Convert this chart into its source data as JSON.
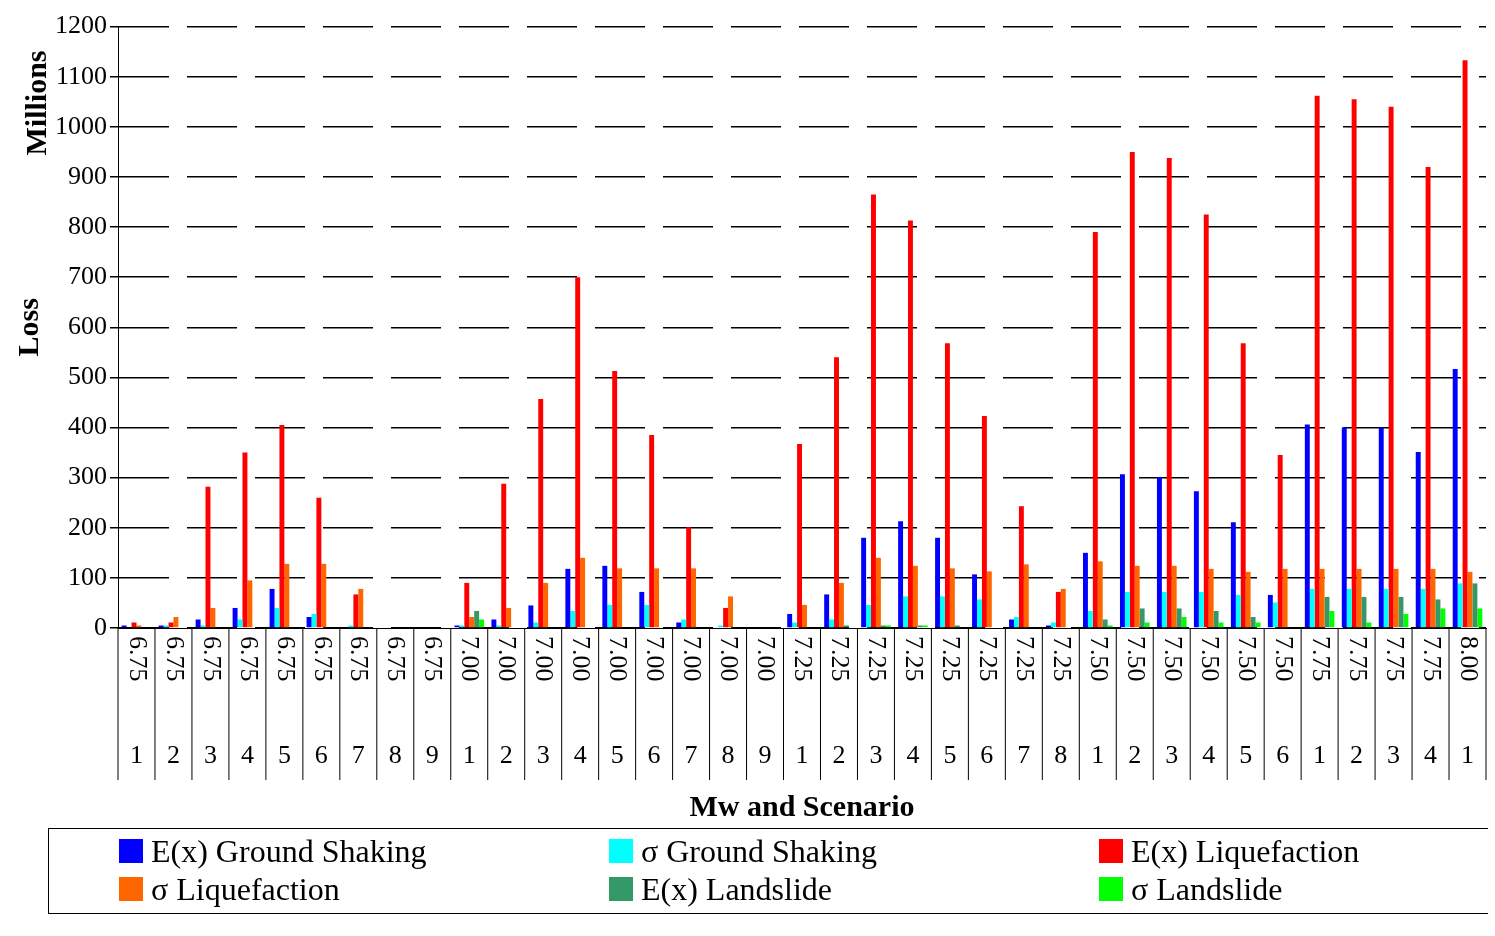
{
  "chart_data": {
    "type": "bar",
    "xlabel": "Mw and Scenario",
    "ylabel": "Loss",
    "annotations": [
      "Millions"
    ],
    "categories": [
      "6.75 1",
      "6.75 2",
      "6.75 3",
      "6.75 4",
      "6.75 5",
      "6.75 6",
      "6.75 7",
      "6.75 8",
      "6.75 9",
      "7.00 1",
      "7.00 2",
      "7.00 3",
      "7.00 4",
      "7.00 5",
      "7.00 6",
      "7.00 7",
      "7.00 8",
      "7.00 9",
      "7.25 1",
      "7.25 2",
      "7.25 3",
      "7.25 4",
      "7.25 5",
      "7.25 6",
      "7.25 7",
      "7.25 8",
      "7.50 1",
      "7.50 2",
      "7.50 3",
      "7.50 4",
      "7.50 5",
      "7.50 6",
      "7.75 1",
      "7.75 2",
      "7.75 3",
      "7.75 4",
      "8.00 1"
    ],
    "series": [
      {
        "name": "E(x) Ground Shaking",
        "color": "#0000ff",
        "values": [
          5,
          5,
          17,
          40,
          78,
          22,
          0,
          0,
          0,
          5,
          17,
          45,
          118,
          124,
          72,
          11,
          0,
          0,
          28,
          67,
          180,
          213,
          180,
          107,
          17,
          5,
          150,
          307,
          301,
          273,
          211,
          66,
          406,
          400,
          400,
          351,
          517
        ]
      },
      {
        "name": "σ Ground Shaking",
        "color": "#00ffff",
        "values": [
          0,
          5,
          5,
          17,
          40,
          28,
          5,
          0,
          0,
          5,
          5,
          11,
          34,
          46,
          46,
          17,
          5,
          0,
          11,
          17,
          46,
          63,
          63,
          57,
          22,
          11,
          34,
          72,
          72,
          72,
          66,
          51,
          78,
          78,
          78,
          78,
          89
        ]
      },
      {
        "name": "E(x) Liquefaction",
        "color": "#ff0000",
        "values": [
          11,
          11,
          282,
          350,
          405,
          260,
          67,
          0,
          0,
          90,
          288,
          457,
          700,
          513,
          385,
          201,
          40,
          0,
          367,
          540,
          865,
          813,
          568,
          423,
          243,
          72,
          790,
          950,
          938,
          825,
          568,
          345,
          1062,
          1055,
          1040,
          920,
          1133
        ]
      },
      {
        "name": "σ Liquefaction",
        "color": "#ff6600",
        "values": [
          5,
          22,
          40,
          95,
          128,
          128,
          78,
          0,
          0,
          22,
          40,
          90,
          140,
          119,
          119,
          119,
          63,
          0,
          46,
          90,
          140,
          124,
          119,
          113,
          127,
          78,
          133,
          124,
          124,
          118,
          112,
          118,
          118,
          118,
          118,
          118,
          112
        ]
      },
      {
        "name": "E(x) Landslide",
        "color": "#339966",
        "values": [
          0,
          0,
          0,
          0,
          0,
          0,
          0,
          0,
          0,
          34,
          0,
          0,
          0,
          0,
          0,
          0,
          0,
          0,
          0,
          5,
          5,
          5,
          5,
          0,
          0,
          0,
          17,
          39,
          39,
          34,
          22,
          0,
          62,
          62,
          62,
          57,
          89
        ]
      },
      {
        "name": "σ Landslide",
        "color": "#00ff00",
        "values": [
          0,
          0,
          0,
          0,
          0,
          0,
          0,
          0,
          0,
          17,
          0,
          0,
          0,
          0,
          0,
          0,
          0,
          0,
          0,
          0,
          5,
          5,
          0,
          0,
          0,
          0,
          5,
          11,
          22,
          11,
          11,
          0,
          34,
          11,
          28,
          39,
          39
        ]
      }
    ],
    "ylim": [
      0,
      1200
    ],
    "yticks": [
      0,
      100,
      200,
      300,
      400,
      500,
      600,
      700,
      800,
      900,
      1000,
      1100,
      1200
    ],
    "grid": "y",
    "legend": "bottom"
  }
}
